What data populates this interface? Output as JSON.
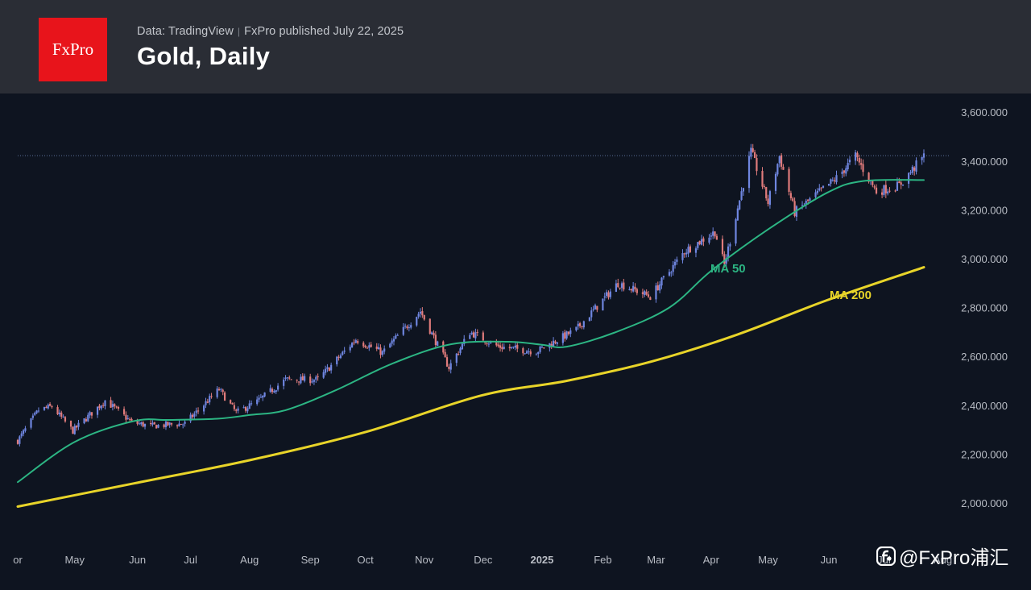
{
  "header": {
    "logo_text": "FxPro",
    "source": "Data: TradingView",
    "published": "FxPro published July 22, 2025",
    "title": "Gold, Daily"
  },
  "watermark": {
    "icon": "brand-icon",
    "text": "@FxPro浦汇"
  },
  "colors": {
    "up": "#6f86e0",
    "down": "#e07b7b",
    "ma50": "#2cb583",
    "ma200": "#e8d429",
    "axis_text": "#b8bcc4",
    "background": "#0e1420",
    "header": "#2a2d35"
  },
  "chart_data": {
    "type": "candlestick",
    "title": "Gold, Daily",
    "y_ticks": [
      "2,000.000",
      "2,200.000",
      "2,400.000",
      "2,600.000",
      "2,800.000",
      "3,000.000",
      "3,200.000",
      "3,400.000",
      "3,600.000"
    ],
    "y_tick_values": [
      2000,
      2200,
      2400,
      2600,
      2800,
      3000,
      3200,
      3400,
      3600
    ],
    "ylim": [
      1900,
      3650
    ],
    "x_range": [
      "2024-04-01",
      "2025-08-05"
    ],
    "x_ticks": [
      {
        "label": "or",
        "date": "2024-04-01"
      },
      {
        "label": "May",
        "date": "2024-05-01"
      },
      {
        "label": "Jun",
        "date": "2024-06-03"
      },
      {
        "label": "Jul",
        "date": "2024-07-01"
      },
      {
        "label": "Aug",
        "date": "2024-08-01"
      },
      {
        "label": "Sep",
        "date": "2024-09-02"
      },
      {
        "label": "Oct",
        "date": "2024-10-01"
      },
      {
        "label": "Nov",
        "date": "2024-11-01"
      },
      {
        "label": "Dec",
        "date": "2024-12-02"
      },
      {
        "label": "2025",
        "date": "2025-01-02",
        "bold": true
      },
      {
        "label": "Feb",
        "date": "2025-02-03"
      },
      {
        "label": "Mar",
        "date": "2025-03-03"
      },
      {
        "label": "Apr",
        "date": "2025-04-01"
      },
      {
        "label": "May",
        "date": "2025-05-01"
      },
      {
        "label": "Jun",
        "date": "2025-06-02"
      },
      {
        "label": "Jul",
        "date": "2025-07-01"
      },
      {
        "label": "Aug",
        "date": "2025-08-01"
      }
    ],
    "reference_line": {
      "value": 3422,
      "style": "dotted"
    },
    "price_keypoints": [
      [
        "2024-04-01",
        2255
      ],
      [
        "2024-04-12",
        2380
      ],
      [
        "2024-04-19",
        2395
      ],
      [
        "2024-04-30",
        2295
      ],
      [
        "2024-05-17",
        2420
      ],
      [
        "2024-05-31",
        2330
      ],
      [
        "2024-06-10",
        2315
      ],
      [
        "2024-06-28",
        2325
      ],
      [
        "2024-07-16",
        2465
      ],
      [
        "2024-07-25",
        2370
      ],
      [
        "2024-08-05",
        2415
      ],
      [
        "2024-08-20",
        2505
      ],
      [
        "2024-09-06",
        2505
      ],
      [
        "2024-09-26",
        2670
      ],
      [
        "2024-10-10",
        2615
      ],
      [
        "2024-10-30",
        2785
      ],
      [
        "2024-11-14",
        2555
      ],
      [
        "2024-11-25",
        2700
      ],
      [
        "2024-12-10",
        2640
      ],
      [
        "2024-12-30",
        2620
      ],
      [
        "2025-01-20",
        2710
      ],
      [
        "2025-02-11",
        2900
      ],
      [
        "2025-02-28",
        2845
      ],
      [
        "2025-03-18",
        3030
      ],
      [
        "2025-04-03",
        3110
      ],
      [
        "2025-04-08",
        2975
      ],
      [
        "2025-04-22",
        3440
      ],
      [
        "2025-05-01",
        3230
      ],
      [
        "2025-05-07",
        3420
      ],
      [
        "2025-05-15",
        3190
      ],
      [
        "2025-06-06",
        3330
      ],
      [
        "2025-06-16",
        3420
      ],
      [
        "2025-06-27",
        3275
      ],
      [
        "2025-07-09",
        3300
      ],
      [
        "2025-07-22",
        3420
      ]
    ],
    "series": [
      {
        "name": "MA 50",
        "type": "line",
        "points": [
          [
            "2024-04-01",
            2085
          ],
          [
            "2024-05-01",
            2250
          ],
          [
            "2024-06-01",
            2335
          ],
          [
            "2024-06-20",
            2340
          ],
          [
            "2024-07-15",
            2345
          ],
          [
            "2024-08-01",
            2360
          ],
          [
            "2024-08-20",
            2380
          ],
          [
            "2024-09-15",
            2460
          ],
          [
            "2024-10-15",
            2570
          ],
          [
            "2024-11-15",
            2650
          ],
          [
            "2024-12-15",
            2660
          ],
          [
            "2025-01-02",
            2648
          ],
          [
            "2025-01-15",
            2640
          ],
          [
            "2025-02-10",
            2700
          ],
          [
            "2025-03-10",
            2800
          ],
          [
            "2025-04-01",
            2950
          ],
          [
            "2025-05-01",
            3120
          ],
          [
            "2025-06-01",
            3270
          ],
          [
            "2025-06-20",
            3318
          ],
          [
            "2025-07-22",
            3322
          ]
        ]
      },
      {
        "name": "MA 200",
        "type": "line",
        "points": [
          [
            "2024-04-01",
            1985
          ],
          [
            "2024-06-01",
            2080
          ],
          [
            "2024-08-01",
            2175
          ],
          [
            "2024-10-01",
            2290
          ],
          [
            "2024-12-01",
            2440
          ],
          [
            "2025-01-15",
            2500
          ],
          [
            "2025-03-01",
            2580
          ],
          [
            "2025-04-15",
            2690
          ],
          [
            "2025-06-01",
            2830
          ],
          [
            "2025-07-22",
            2965
          ]
        ]
      }
    ],
    "annotations": [
      {
        "text": "MA 50",
        "series": "MA 50"
      },
      {
        "text": "MA 200",
        "series": "MA 200"
      }
    ]
  }
}
